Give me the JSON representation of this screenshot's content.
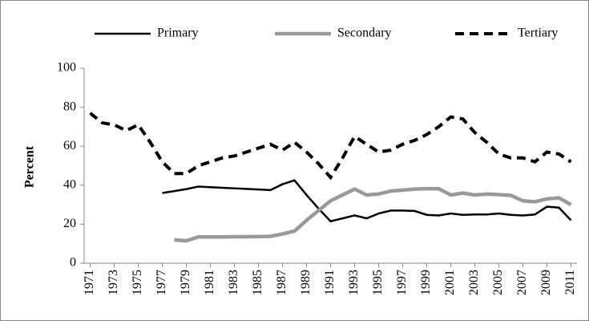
{
  "chart_data": {
    "type": "line",
    "x": [
      1971,
      1972,
      1973,
      1974,
      1975,
      1976,
      1977,
      1978,
      1979,
      1980,
      1981,
      1982,
      1983,
      1984,
      1985,
      1986,
      1987,
      1988,
      1989,
      1990,
      1991,
      1992,
      1993,
      1994,
      1995,
      1996,
      1997,
      1998,
      1999,
      2000,
      2001,
      2002,
      2003,
      2004,
      2005,
      2006,
      2007,
      2008,
      2009,
      2010,
      2011
    ],
    "series": [
      {
        "name": "Primary",
        "color": "#000000",
        "width": 2.5,
        "dash": false,
        "values": [
          null,
          null,
          null,
          null,
          null,
          null,
          36,
          37,
          38,
          39.3,
          39,
          38.7,
          38.4,
          38.1,
          37.8,
          37.5,
          40.5,
          42.5,
          35,
          28,
          21.5,
          23,
          24.5,
          23,
          25.5,
          27,
          27,
          26.8,
          24.8,
          24.5,
          25.5,
          24.8,
          25,
          25,
          25.5,
          24.8,
          24.5,
          25,
          29,
          28.5,
          22
        ]
      },
      {
        "name": "Secondary",
        "color": "#999999",
        "width": 4.5,
        "dash": false,
        "values": [
          null,
          null,
          null,
          null,
          null,
          null,
          null,
          12,
          11.5,
          13.5,
          13.5,
          13.5,
          13.6,
          13.6,
          13.7,
          13.8,
          15,
          16.5,
          22,
          27,
          32,
          35,
          38,
          35,
          35.5,
          37,
          37.5,
          38,
          38.2,
          38.2,
          35,
          36,
          35,
          35.5,
          35.2,
          34.8,
          32,
          31.5,
          33,
          33.5,
          30
        ]
      },
      {
        "name": "Tertiary",
        "color": "#000000",
        "width": 4,
        "dash": true,
        "values": [
          77,
          72,
          71,
          68,
          71,
          62,
          52,
          46,
          46,
          50,
          52,
          54,
          55,
          57,
          59,
          61,
          58,
          62,
          57,
          51,
          44,
          54,
          65,
          61,
          57,
          58,
          61,
          63,
          66,
          70,
          75,
          74,
          67,
          62,
          56,
          54,
          54,
          52,
          57,
          56,
          52
        ]
      }
    ],
    "y_label": "Percent",
    "xlim": [
      1970.5,
      2011.5
    ],
    "xticks": [
      1971,
      1973,
      1975,
      1977,
      1979,
      1981,
      1983,
      1985,
      1987,
      1989,
      1991,
      1993,
      1995,
      1997,
      1999,
      2001,
      2003,
      2005,
      2007,
      2009,
      2011
    ],
    "ylim": [
      0,
      100
    ],
    "yticks": [
      0,
      20,
      40,
      60,
      80,
      100
    ],
    "grid": false,
    "legend": "top"
  }
}
